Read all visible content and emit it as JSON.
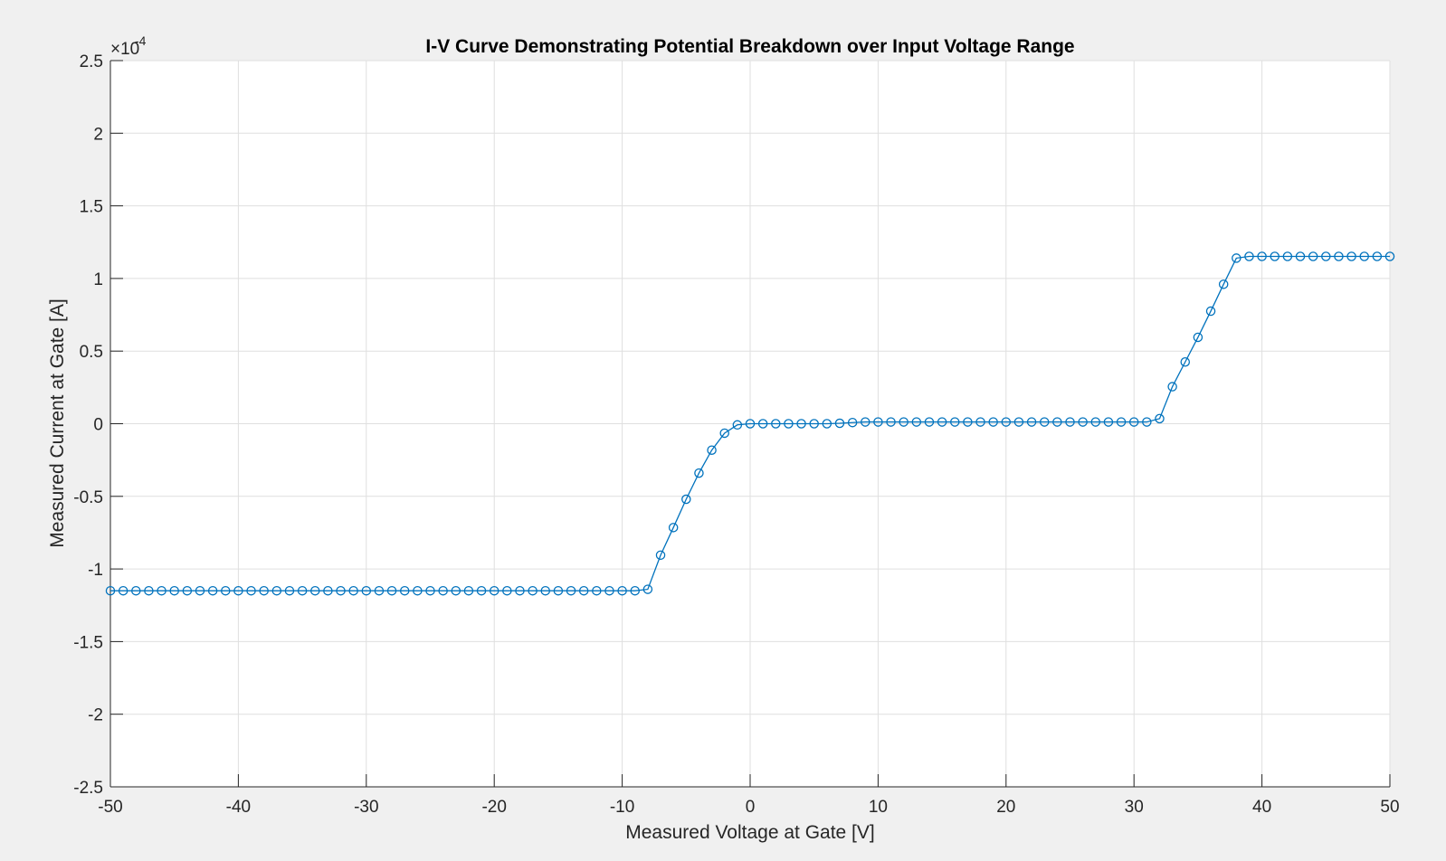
{
  "figure": {
    "background": "#f0f0f0"
  },
  "chart_data": {
    "type": "line",
    "title": "I-V Curve Demonstrating Potential Breakdown over Input Voltage Range",
    "xlabel": "Measured Voltage at Gate [V]",
    "ylabel": "Measured Current at Gate [A]",
    "y_exponent_label": "×10",
    "y_exponent_value": "-4",
    "y_scale_factor": 0.0001,
    "xlim": [
      -50,
      50
    ],
    "ylim": [
      -0.00025,
      0.00025
    ],
    "x_ticks": [
      -50,
      -40,
      -30,
      -20,
      -10,
      0,
      10,
      20,
      30,
      40,
      50
    ],
    "x_tick_labels": [
      "-50",
      "-40",
      "-30",
      "-20",
      "-10",
      "0",
      "10",
      "20",
      "30",
      "40",
      "50"
    ],
    "y_ticks": [
      -0.00025,
      -0.0002,
      -0.00015,
      -0.0001,
      -5e-05,
      0,
      5e-05,
      0.0001,
      0.00015,
      0.0002,
      0.00025
    ],
    "y_tick_labels": [
      "-2.5",
      "-2",
      "-1.5",
      "-1",
      "-0.5",
      "0",
      "0.5",
      "1",
      "1.5",
      "2",
      "2.5"
    ],
    "grid": true,
    "line_color": "#0072bd",
    "marker": "circle",
    "series": [
      {
        "x": [
          -50,
          -49,
          -48,
          -47,
          -46,
          -45,
          -44,
          -43,
          -42,
          -41,
          -40,
          -39,
          -38,
          -37,
          -36,
          -35,
          -34,
          -33,
          -32,
          -31,
          -30,
          -29,
          -28,
          -27,
          -26,
          -25,
          -24,
          -23,
          -22,
          -21,
          -20,
          -19,
          -18,
          -17,
          -16,
          -15,
          -14,
          -13,
          -12,
          -11,
          -10,
          -9,
          -8,
          -7,
          -6,
          -5,
          -4,
          -3,
          -2,
          -1,
          0,
          1,
          2,
          3,
          4,
          5,
          6,
          7,
          8,
          9,
          10,
          11,
          12,
          13,
          14,
          15,
          16,
          17,
          18,
          19,
          20,
          21,
          22,
          23,
          24,
          25,
          26,
          27,
          28,
          29,
          30,
          31,
          32,
          33,
          34,
          35,
          36,
          37,
          38,
          39,
          40,
          41,
          42,
          43,
          44,
          45,
          46,
          47,
          48,
          49,
          50
        ],
        "y": [
          -0.000115,
          -0.000115,
          -0.000115,
          -0.000115,
          -0.000115,
          -0.000115,
          -0.000115,
          -0.000115,
          -0.000115,
          -0.000115,
          -0.000115,
          -0.000115,
          -0.000115,
          -0.000115,
          -0.000115,
          -0.000115,
          -0.000115,
          -0.000115,
          -0.000115,
          -0.000115,
          -0.000115,
          -0.000115,
          -0.000115,
          -0.000115,
          -0.000115,
          -0.000115,
          -0.000115,
          -0.000115,
          -0.000115,
          -0.000115,
          -0.000115,
          -0.000115,
          -0.000115,
          -0.000115,
          -0.000115,
          -0.000115,
          -0.000115,
          -0.000115,
          -0.000115,
          -0.000115,
          -0.000115,
          -0.000115,
          -0.000114,
          -9.05e-05,
          -7.15e-05,
          -5.2e-05,
          -3.4e-05,
          -1.82e-05,
          -6.5e-06,
          -8e-07,
          0,
          0,
          0,
          0,
          0,
          0,
          0,
          3e-07,
          8e-07,
          1.2e-06,
          1.2e-06,
          1.2e-06,
          1.2e-06,
          1.2e-06,
          1.2e-06,
          1.2e-06,
          1.2e-06,
          1.2e-06,
          1.2e-06,
          1.2e-06,
          1.2e-06,
          1.2e-06,
          1.2e-06,
          1.2e-06,
          1.2e-06,
          1.2e-06,
          1.2e-06,
          1.2e-06,
          1.2e-06,
          1.2e-06,
          1.2e-06,
          1.2e-06,
          3.5e-06,
          2.55e-05,
          4.25e-05,
          5.95e-05,
          7.75e-05,
          9.6e-05,
          0.000114,
          0.0001152,
          0.0001152,
          0.0001152,
          0.0001152,
          0.0001152,
          0.0001152,
          0.0001152,
          0.0001152,
          0.0001152,
          0.0001152,
          0.0001152,
          0.0001152
        ]
      }
    ]
  }
}
